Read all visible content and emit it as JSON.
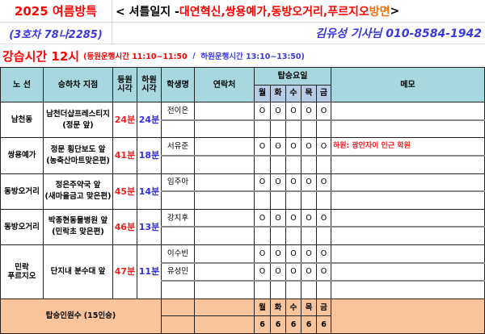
{
  "header": {
    "title": "2025 여름방특",
    "subtitle_prefix": "< 셔틀일지 - ",
    "areas": "대연혁신,쌍용예가,동방오거리,푸르지오",
    "area_suffix": " 방면",
    "subtitle_end": " >",
    "vehicle": "(3호차 78나2285)",
    "driver": "김유성 기사님  010-8584-1942",
    "class_time": "강습시간  12시",
    "morning_run": "(등원운행시간 11:10~11:50",
    "sep": "  /  ",
    "afternoon_run": "하원운행시간 13:10~13:50)"
  },
  "table": {
    "columns": {
      "route": "노 선",
      "stop": "승하차 지점",
      "pickup": "등원\n시각",
      "dropoff": "하원\n시각",
      "student": "학생명",
      "contact": "연락처",
      "days_header": "탑승요일",
      "memo": "메모"
    },
    "days": [
      "월",
      "화",
      "수",
      "목",
      "금"
    ],
    "groups": [
      {
        "route": "남천동",
        "stop": "남천더샵프레스티지\n(정문 앞)",
        "pickup": "24분",
        "dropoff": "24분",
        "students": [
          {
            "name": "전이은",
            "days": [
              "O",
              "O",
              "O",
              "O",
              "O"
            ],
            "memo": ""
          },
          {
            "name": "",
            "days": [
              "",
              "",
              "",
              "",
              ""
            ],
            "memo": ""
          }
        ]
      },
      {
        "route": "쌍용예가",
        "stop": "정문 횡단보도 앞\n(농축산마트맞은편)",
        "pickup": "41분",
        "dropoff": "18분",
        "students": [
          {
            "name": "서유준",
            "days": [
              "O",
              "O",
              "O",
              "O",
              "O"
            ],
            "memo": "하원: 광안자이 인근 학원"
          },
          {
            "name": "",
            "days": [
              "",
              "",
              "",
              "",
              ""
            ],
            "memo": ""
          }
        ]
      },
      {
        "route": "동방오거리",
        "stop": "정은주약국 앞\n(새마을금고 맞은편)",
        "pickup": "45분",
        "dropoff": "14분",
        "students": [
          {
            "name": "임주아",
            "days": [
              "O",
              "O",
              "O",
              "O",
              "O"
            ],
            "memo": ""
          },
          {
            "name": "",
            "days": [
              "",
              "",
              "",
              "",
              ""
            ],
            "memo": ""
          }
        ]
      },
      {
        "route": "동방오거리",
        "stop": "박종현동물병원 앞\n(민락초 맞은편)",
        "pickup": "46분",
        "dropoff": "13분",
        "students": [
          {
            "name": "강지후",
            "days": [
              "O",
              "O",
              "O",
              "O",
              "O"
            ],
            "memo": ""
          },
          {
            "name": "",
            "days": [
              "",
              "",
              "",
              "",
              ""
            ],
            "memo": ""
          }
        ]
      },
      {
        "route": "민락\n푸르지오",
        "stop": "단지내 분수대 앞",
        "pickup": "47분",
        "dropoff": "11분",
        "students": [
          {
            "name": "이수빈",
            "days": [
              "O",
              "O",
              "O",
              "O",
              "O"
            ],
            "memo": ""
          },
          {
            "name": "유성민",
            "days": [
              "O",
              "O",
              "O",
              "O",
              "O"
            ],
            "memo": ""
          },
          {
            "name": "",
            "days": [
              "",
              "",
              "",
              "",
              ""
            ],
            "memo": ""
          }
        ]
      }
    ],
    "summary": {
      "label": "탑승인원수 (15인승)",
      "counts": [
        "6",
        "6",
        "6",
        "6",
        "6"
      ]
    }
  }
}
